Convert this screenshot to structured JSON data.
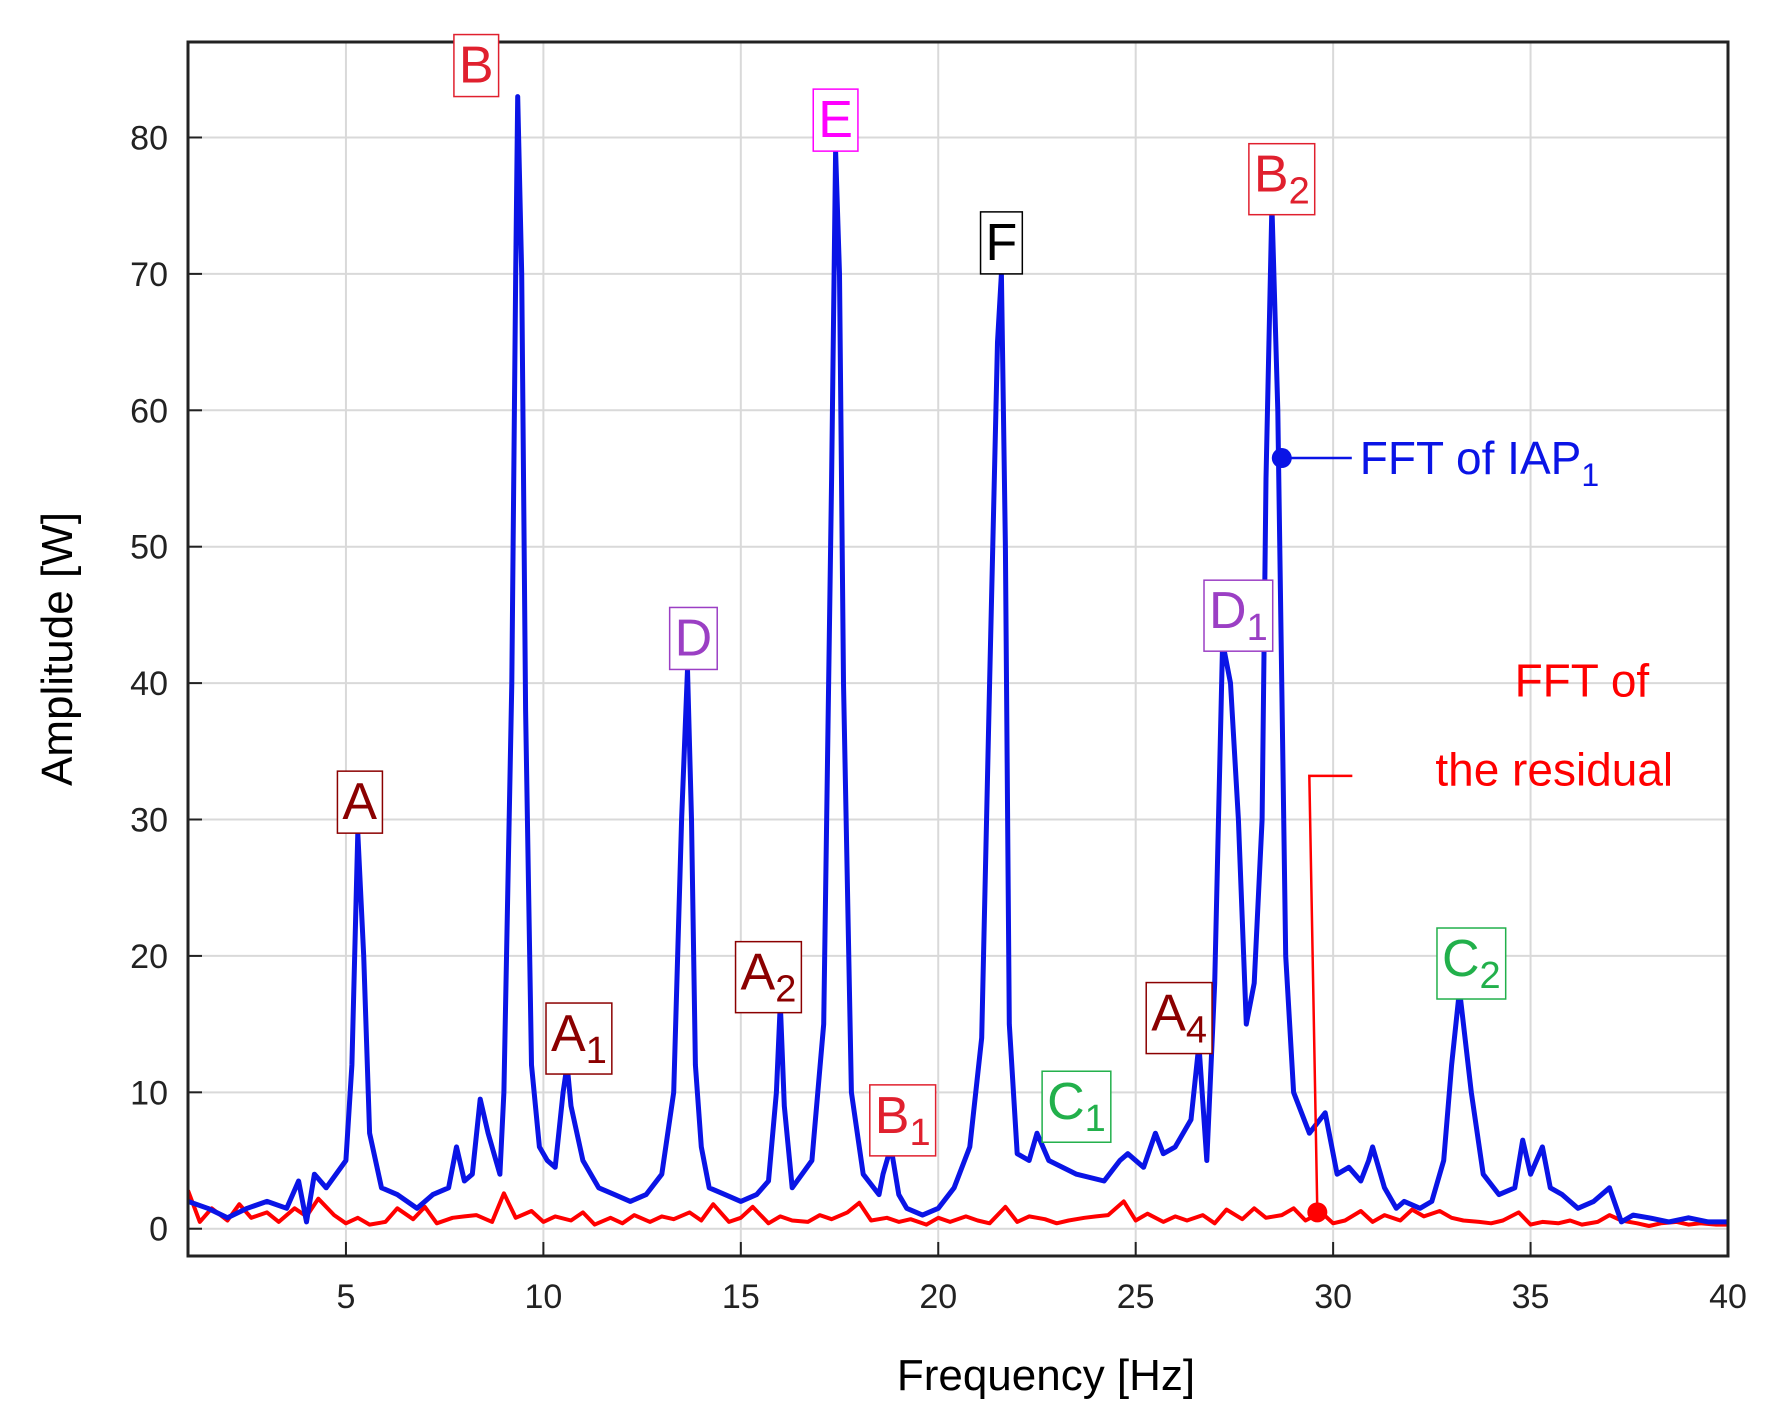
{
  "chart_data": {
    "type": "line",
    "xlabel": "Frequency [Hz]",
    "ylabel": "Amplitude [W]",
    "xlim": [
      1,
      40
    ],
    "ylim": [
      -2,
      87
    ],
    "grid": true,
    "xticks": [
      5,
      10,
      15,
      20,
      25,
      30,
      35,
      40
    ],
    "yticks": [
      0,
      10,
      20,
      30,
      40,
      50,
      60,
      70,
      80
    ],
    "series": [
      {
        "name": "FFT of IAP",
        "name_sub": "1",
        "color": "#0a14e6",
        "x": [
          1.0,
          1.5,
          2.0,
          2.5,
          3.0,
          3.5,
          3.8,
          4.0,
          4.2,
          4.5,
          5.0,
          5.15,
          5.3,
          5.45,
          5.6,
          5.9,
          6.3,
          6.8,
          7.2,
          7.6,
          7.8,
          8.0,
          8.2,
          8.4,
          8.6,
          8.9,
          9.0,
          9.2,
          9.3,
          9.35,
          9.45,
          9.55,
          9.7,
          9.9,
          10.1,
          10.3,
          10.5,
          10.6,
          10.7,
          11.0,
          11.4,
          11.8,
          12.2,
          12.6,
          13.0,
          13.3,
          13.5,
          13.65,
          13.75,
          13.85,
          14.0,
          14.2,
          14.6,
          15.0,
          15.4,
          15.7,
          15.9,
          16.0,
          16.1,
          16.3,
          16.8,
          17.1,
          17.3,
          17.4,
          17.5,
          17.6,
          17.8,
          18.1,
          18.5,
          18.6,
          18.8,
          19.0,
          19.2,
          19.6,
          20.0,
          20.4,
          20.8,
          21.1,
          21.3,
          21.5,
          21.6,
          21.7,
          21.8,
          22.0,
          22.3,
          22.5,
          22.8,
          23.5,
          24.2,
          24.6,
          24.8,
          25.2,
          25.5,
          25.7,
          26.0,
          26.4,
          26.6,
          26.8,
          27.0,
          27.2,
          27.4,
          27.6,
          27.8,
          28.0,
          28.2,
          28.3,
          28.45,
          28.6,
          28.8,
          29.0,
          29.4,
          29.8,
          30.1,
          30.4,
          30.7,
          30.9,
          31.0,
          31.3,
          31.6,
          31.8,
          32.2,
          32.5,
          32.8,
          33.0,
          33.2,
          33.5,
          33.8,
          34.2,
          34.6,
          34.8,
          35.0,
          35.3,
          35.5,
          35.8,
          36.2,
          36.6,
          37.0,
          37.3,
          37.6,
          38.0,
          38.5,
          39.0,
          39.5,
          40.0
        ],
        "y": [
          2.0,
          1.5,
          0.8,
          1.5,
          2.0,
          1.5,
          3.5,
          0.5,
          4.0,
          3.0,
          5.0,
          12.0,
          29.0,
          20.0,
          7.0,
          3.0,
          2.5,
          1.5,
          2.5,
          3.0,
          6.0,
          3.5,
          4.0,
          9.5,
          7.0,
          4.0,
          10.0,
          40.0,
          70.0,
          83.0,
          70.0,
          38.0,
          12.0,
          6.0,
          5.0,
          4.5,
          10.0,
          12.0,
          9.0,
          5.0,
          3.0,
          2.5,
          2.0,
          2.5,
          4.0,
          10.0,
          30.0,
          41.0,
          30.0,
          12.0,
          6.0,
          3.0,
          2.5,
          2.0,
          2.5,
          3.5,
          10.0,
          16.5,
          9.0,
          3.0,
          5.0,
          15.0,
          55.0,
          79.0,
          70.0,
          40.0,
          10.0,
          4.0,
          2.5,
          4.0,
          6.0,
          2.5,
          1.5,
          1.0,
          1.5,
          3.0,
          6.0,
          14.0,
          40.0,
          65.0,
          70.0,
          50.0,
          15.0,
          5.5,
          5.0,
          7.0,
          5.0,
          4.0,
          3.5,
          5.0,
          5.5,
          4.5,
          7.0,
          5.5,
          6.0,
          8.0,
          13.5,
          5.0,
          18.0,
          43.0,
          40.0,
          30.0,
          15.0,
          18.0,
          30.0,
          55.0,
          75.0,
          60.0,
          20.0,
          10.0,
          7.0,
          8.5,
          4.0,
          4.5,
          3.5,
          5.0,
          6.0,
          3.0,
          1.5,
          2.0,
          1.5,
          2.0,
          5.0,
          12.0,
          17.5,
          10.0,
          4.0,
          2.5,
          3.0,
          6.5,
          4.0,
          6.0,
          3.0,
          2.5,
          1.5,
          2.0,
          3.0,
          0.5,
          1.0,
          0.8,
          0.5,
          0.8,
          0.5,
          0.5
        ]
      },
      {
        "name": "FFT of the residual",
        "name_lines": [
          "FFT of",
          "the residual"
        ],
        "color": "#ff0000",
        "x": [
          1.0,
          1.3,
          1.6,
          2.0,
          2.3,
          2.6,
          3.0,
          3.3,
          3.7,
          4.0,
          4.3,
          4.7,
          5.0,
          5.3,
          5.6,
          6.0,
          6.3,
          6.7,
          7.0,
          7.3,
          7.7,
          8.0,
          8.3,
          8.7,
          9.0,
          9.3,
          9.7,
          10.0,
          10.3,
          10.7,
          11.0,
          11.3,
          11.7,
          12.0,
          12.3,
          12.7,
          13.0,
          13.3,
          13.7,
          14.0,
          14.3,
          14.7,
          15.0,
          15.3,
          15.7,
          16.0,
          16.3,
          16.7,
          17.0,
          17.3,
          17.7,
          18.0,
          18.3,
          18.7,
          19.0,
          19.3,
          19.7,
          20.0,
          20.3,
          20.7,
          21.0,
          21.3,
          21.7,
          22.0,
          22.3,
          22.7,
          23.0,
          23.3,
          23.7,
          24.0,
          24.3,
          24.7,
          25.0,
          25.3,
          25.7,
          26.0,
          26.3,
          26.7,
          27.0,
          27.3,
          27.7,
          28.0,
          28.3,
          28.7,
          29.0,
          29.3,
          29.7,
          30.0,
          30.3,
          30.7,
          31.0,
          31.3,
          31.7,
          32.0,
          32.3,
          32.7,
          33.0,
          33.3,
          33.7,
          34.0,
          34.3,
          34.7,
          35.0,
          35.3,
          35.7,
          36.0,
          36.3,
          36.7,
          37.0,
          37.3,
          37.7,
          38.0,
          38.3,
          38.7,
          39.0,
          39.3,
          39.7,
          40.0
        ],
        "y": [
          2.8,
          0.5,
          1.5,
          0.6,
          1.8,
          0.8,
          1.2,
          0.5,
          1.5,
          0.9,
          2.2,
          1.0,
          0.4,
          0.8,
          0.3,
          0.5,
          1.5,
          0.7,
          1.6,
          0.4,
          0.8,
          0.9,
          1.0,
          0.5,
          2.6,
          0.8,
          1.3,
          0.5,
          0.9,
          0.6,
          1.2,
          0.3,
          0.8,
          0.4,
          1.0,
          0.5,
          0.9,
          0.7,
          1.2,
          0.6,
          1.8,
          0.5,
          0.8,
          1.6,
          0.4,
          0.9,
          0.6,
          0.5,
          1.0,
          0.7,
          1.2,
          1.9,
          0.6,
          0.8,
          0.5,
          0.7,
          0.3,
          0.8,
          0.5,
          0.9,
          0.6,
          0.4,
          1.6,
          0.5,
          0.9,
          0.7,
          0.4,
          0.6,
          0.8,
          0.9,
          1.0,
          2.0,
          0.6,
          1.1,
          0.5,
          0.9,
          0.6,
          1.0,
          0.4,
          1.4,
          0.7,
          1.5,
          0.8,
          1.0,
          1.5,
          0.6,
          1.2,
          0.4,
          0.6,
          1.3,
          0.5,
          1.0,
          0.6,
          1.4,
          0.9,
          1.3,
          0.8,
          0.6,
          0.5,
          0.4,
          0.6,
          1.2,
          0.3,
          0.5,
          0.4,
          0.6,
          0.3,
          0.5,
          1.0,
          0.6,
          0.4,
          0.2,
          0.4,
          0.5,
          0.3,
          0.4,
          0.3,
          0.3
        ]
      }
    ],
    "annotations": [
      {
        "main": "A",
        "sub": "",
        "x": 5.35,
        "y": 29,
        "color": "#8b0000"
      },
      {
        "main": "B",
        "sub": "",
        "x": 8.3,
        "y": 83,
        "color": "#e0202e"
      },
      {
        "main": "A",
        "sub": "1",
        "x": 10.9,
        "y": 12,
        "color": "#8b0000"
      },
      {
        "main": "D",
        "sub": "",
        "x": 13.8,
        "y": 41,
        "color": "#9b3fc4"
      },
      {
        "main": "A",
        "sub": "2",
        "x": 15.7,
        "y": 16.5,
        "color": "#8b0000"
      },
      {
        "main": "E",
        "sub": "",
        "x": 17.4,
        "y": 79,
        "color": "#ff00ff"
      },
      {
        "main": "B",
        "sub": "1",
        "x": 19.1,
        "y": 6,
        "color": "#e0202e"
      },
      {
        "main": "F",
        "sub": "",
        "x": 21.6,
        "y": 70,
        "color": "#000000"
      },
      {
        "main": "C",
        "sub": "1",
        "x": 23.5,
        "y": 7,
        "color": "#22b04b"
      },
      {
        "main": "A",
        "sub": "4",
        "x": 26.1,
        "y": 13.5,
        "color": "#8b0000"
      },
      {
        "main": "D",
        "sub": "1",
        "x": 27.6,
        "y": 43,
        "color": "#9b3fc4"
      },
      {
        "main": "B",
        "sub": "2",
        "x": 28.7,
        "y": 75,
        "color": "#e0202e"
      },
      {
        "main": "C",
        "sub": "2",
        "x": 33.5,
        "y": 17.5,
        "color": "#22b04b"
      }
    ]
  }
}
